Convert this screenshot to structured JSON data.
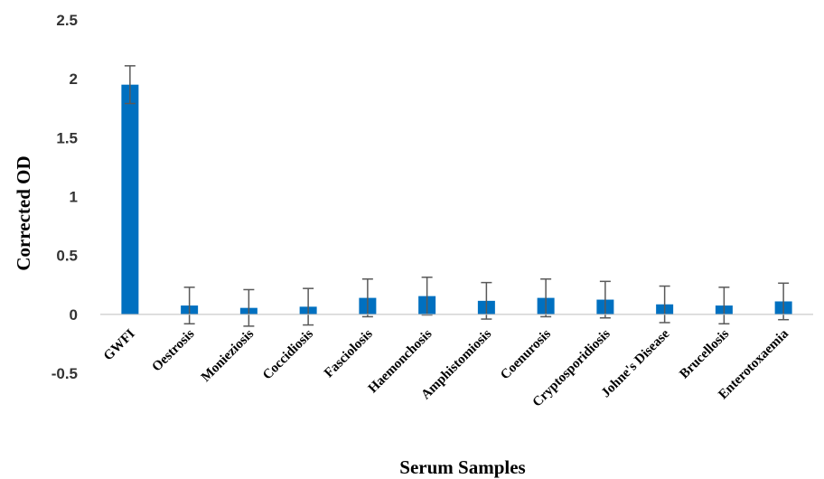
{
  "chart_data": {
    "type": "bar",
    "title": "",
    "xlabel": "Serum Samples",
    "ylabel": "Corrected OD",
    "ylim": [
      -0.5,
      2.5
    ],
    "yticks": [
      "2.5",
      "2",
      "1.5",
      "1",
      "0.5",
      "0",
      "-0.5"
    ],
    "ytick_values": [
      2.5,
      2,
      1.5,
      1,
      0.5,
      0,
      -0.5
    ],
    "grid": false,
    "bar_color": "#0070C0",
    "error_bar_color": "#595959",
    "categories": [
      "GWFI",
      "Oestrosis",
      "Monieziosis",
      "Coccidiosis",
      "Fasciolosis",
      "Haemonchosis",
      "Amphistomiosis",
      "Coenurosis",
      "Cryptosporidiosis",
      "Johne's Disease",
      "Brucellosis",
      "Enterotoxaemia"
    ],
    "values": [
      1.95,
      0.075,
      0.055,
      0.065,
      0.14,
      0.155,
      0.115,
      0.14,
      0.125,
      0.085,
      0.075,
      0.11
    ],
    "errors": [
      0.16,
      0.155,
      0.155,
      0.155,
      0.16,
      0.16,
      0.155,
      0.16,
      0.155,
      0.155,
      0.155,
      0.155
    ]
  }
}
